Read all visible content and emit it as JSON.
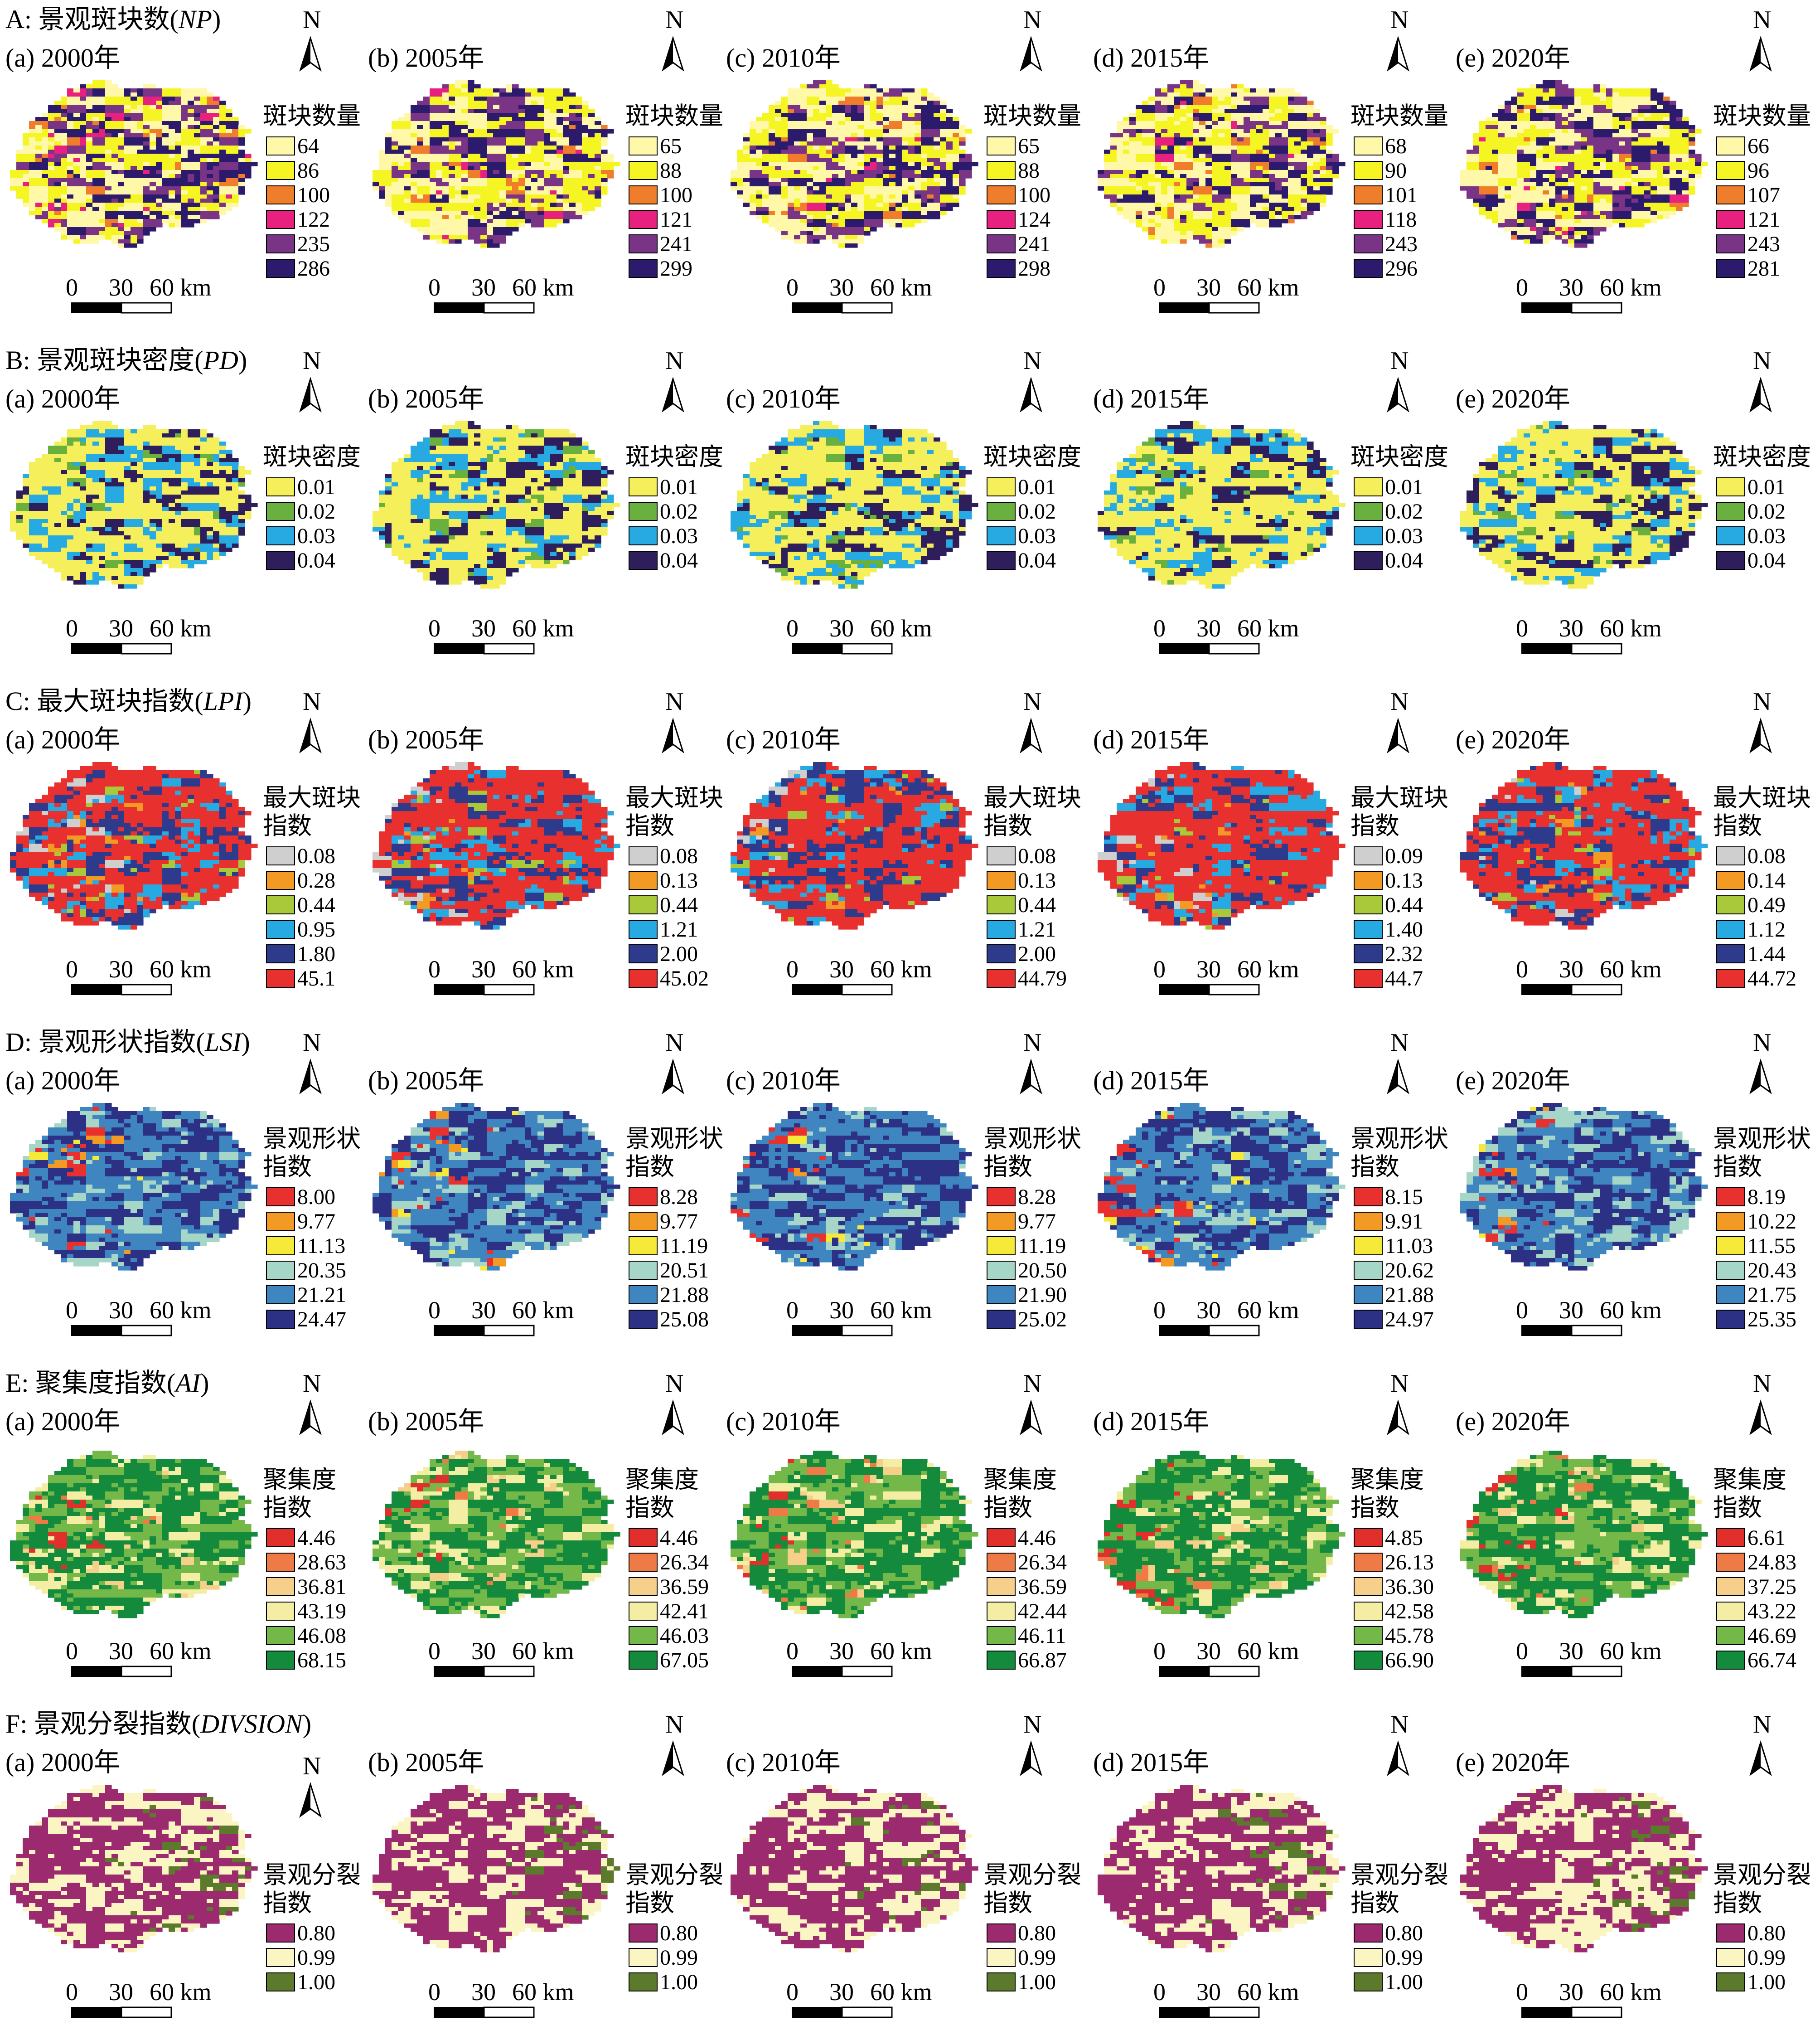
{
  "years": [
    "(a) 2000年",
    "(b) 2005年",
    "(c) 2010年",
    "(d) 2015年",
    "(e) 2020年"
  ],
  "north_label": "N",
  "scale_bar": {
    "labels": [
      "0",
      "30",
      "60 km"
    ]
  },
  "rows": [
    {
      "id": "np",
      "title_prefix": "A: 景观斑块数(",
      "title_abbr": "NP",
      "title_suffix": ")",
      "legend_title": [
        "斑块数量"
      ],
      "palette": [
        "#fff8a8",
        "#f5f524",
        "#ef7d2b",
        "#e8207f",
        "#7a3486",
        "#2c1b6c"
      ],
      "weights": [
        0.3,
        0.3,
        0.03,
        0.02,
        0.15,
        0.2
      ],
      "legend_values": [
        [
          "64",
          "86",
          "100",
          "122",
          "235",
          "286"
        ],
        [
          "65",
          "88",
          "100",
          "121",
          "241",
          "299"
        ],
        [
          "65",
          "88",
          "100",
          "124",
          "241",
          "298"
        ],
        [
          "68",
          "90",
          "101",
          "118",
          "243",
          "296"
        ],
        [
          "66",
          "96",
          "107",
          "121",
          "243",
          "281"
        ]
      ]
    },
    {
      "id": "pd",
      "title_prefix": "B: 景观斑块密度(",
      "title_abbr": "PD",
      "title_suffix": ")",
      "legend_title": [
        "斑块密度"
      ],
      "palette": [
        "#f5ef5c",
        "#6ab03e",
        "#27a9e1",
        "#2e1f5c"
      ],
      "weights": [
        0.58,
        0.04,
        0.2,
        0.18
      ],
      "legend_values": [
        [
          "0.01",
          "0.02",
          "0.03",
          "0.04"
        ],
        [
          "0.01",
          "0.02",
          "0.03",
          "0.04"
        ],
        [
          "0.01",
          "0.02",
          "0.03",
          "0.04"
        ],
        [
          "0.01",
          "0.02",
          "0.03",
          "0.04"
        ],
        [
          "0.01",
          "0.02",
          "0.03",
          "0.04"
        ]
      ]
    },
    {
      "id": "lpi",
      "title_prefix": "C: 最大斑块指数(",
      "title_abbr": "LPI",
      "title_suffix": ")",
      "legend_title": [
        "最大斑块",
        "指数"
      ],
      "palette": [
        "#cfcfcf",
        "#f39a25",
        "#a9c83a",
        "#27a9e1",
        "#2e3a8c",
        "#e8302f"
      ],
      "weights": [
        0.02,
        0.03,
        0.05,
        0.12,
        0.2,
        0.58
      ],
      "legend_values": [
        [
          "0.08",
          "0.28",
          "0.44",
          "0.95",
          "1.80",
          "45.1"
        ],
        [
          "0.08",
          "0.13",
          "0.44",
          "1.21",
          "2.00",
          "45.02"
        ],
        [
          "0.08",
          "0.13",
          "0.44",
          "1.21",
          "2.00",
          "44.79"
        ],
        [
          "0.09",
          "0.13",
          "0.44",
          "1.40",
          "2.32",
          "44.7"
        ],
        [
          "0.08",
          "0.14",
          "0.49",
          "1.12",
          "1.44",
          "44.72"
        ]
      ]
    },
    {
      "id": "lsi",
      "title_prefix": "D: 景观形状指数(",
      "title_abbr": "LSI",
      "title_suffix": ")",
      "legend_title": [
        "景观形状",
        "指数"
      ],
      "palette": [
        "#e8302f",
        "#f39a25",
        "#f5ea3a",
        "#a6d6c8",
        "#3f86c0",
        "#2d3186"
      ],
      "weights": [
        0.01,
        0.01,
        0.02,
        0.16,
        0.45,
        0.35
      ],
      "legend_values": [
        [
          "8.00",
          "9.77",
          "11.13",
          "20.35",
          "21.21",
          "24.47"
        ],
        [
          "8.28",
          "9.77",
          "11.19",
          "20.51",
          "21.88",
          "25.08"
        ],
        [
          "8.28",
          "9.77",
          "11.19",
          "20.50",
          "21.90",
          "25.02"
        ],
        [
          "8.15",
          "9.91",
          "11.03",
          "20.62",
          "21.88",
          "24.97"
        ],
        [
          "8.19",
          "10.22",
          "11.55",
          "20.43",
          "21.75",
          "25.35"
        ]
      ]
    },
    {
      "id": "ai",
      "title_prefix": "E: 聚集度指数(",
      "title_abbr": "AI",
      "title_suffix": ")",
      "legend_title": [
        "聚集度",
        "指数"
      ],
      "palette": [
        "#e1302b",
        "#ee7b45",
        "#f6cf8a",
        "#f3eea4",
        "#74b84a",
        "#138a3c"
      ],
      "weights": [
        0.01,
        0.02,
        0.04,
        0.15,
        0.3,
        0.48
      ],
      "legend_values": [
        [
          "4.46",
          "28.63",
          "36.81",
          "43.19",
          "46.08",
          "68.15"
        ],
        [
          "4.46",
          "26.34",
          "36.59",
          "42.41",
          "46.03",
          "67.05"
        ],
        [
          "4.46",
          "26.34",
          "36.59",
          "42.44",
          "46.11",
          "66.87"
        ],
        [
          "4.85",
          "26.13",
          "36.30",
          "42.58",
          "45.78",
          "66.90"
        ],
        [
          "6.61",
          "24.83",
          "37.25",
          "43.22",
          "46.69",
          "66.74"
        ]
      ]
    },
    {
      "id": "division",
      "title_prefix": "F: 景观分裂指数(",
      "title_abbr": "DIVSION",
      "title_suffix": ")",
      "legend_title": [
        "景观分裂",
        "指数"
      ],
      "palette": [
        "#9c2a6e",
        "#fbf5c4",
        "#5c7a2c"
      ],
      "weights": [
        0.62,
        0.36,
        0.02
      ],
      "legend_values": [
        [
          "0.80",
          "0.99",
          "1.00"
        ],
        [
          "0.80",
          "0.99",
          "1.00"
        ],
        [
          "0.80",
          "0.99",
          "1.00"
        ],
        [
          "0.80",
          "0.99",
          "1.00"
        ],
        [
          "0.80",
          "0.99",
          "1.00"
        ]
      ]
    }
  ]
}
